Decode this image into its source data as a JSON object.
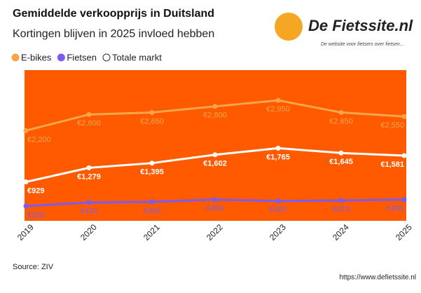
{
  "chart_data": {
    "type": "line",
    "title": "Gemiddelde verkoopprijs in Duitsland",
    "subtitle": "Kortingen blijven in 2025 invloed hebben",
    "logo": "De Fietssite.nl",
    "logo_tagline": "De website voor fietsers over fietsen...",
    "source": "Source: ZIV",
    "url": "https://www.defietssite.nl",
    "plot_background": "#ff5a00",
    "categories": [
      "2019",
      "2020",
      "2021",
      "2022",
      "2023",
      "2024",
      "2025"
    ],
    "ylim": [
      0,
      3700
    ],
    "series": [
      {
        "name": "E-bikes",
        "color": "#f9a64a",
        "values": [
          2200,
          2600,
          2650,
          2800,
          2950,
          2650,
          2550
        ],
        "value_labels": [
          "€2,200",
          "€2,600",
          "€2,650",
          "€2,800",
          "€2,950",
          "€2,650",
          "€2,550"
        ]
      },
      {
        "name": "Fietsen",
        "color": "#7b5cf0",
        "values": [
          330,
          420,
          435,
          490,
          455,
          470,
          490
        ],
        "value_labels": [
          "€330",
          "€420",
          "€435",
          "€490",
          "€455",
          "€470",
          "€490"
        ]
      },
      {
        "name": "Totale markt",
        "color": "#ffffff",
        "values": [
          929,
          1279,
          1395,
          1602,
          1765,
          1645,
          1581
        ],
        "value_labels": [
          "€929",
          "€1,279",
          "€1,395",
          "€1,602",
          "€1,765",
          "€1,645",
          "€1,581"
        ]
      }
    ]
  }
}
